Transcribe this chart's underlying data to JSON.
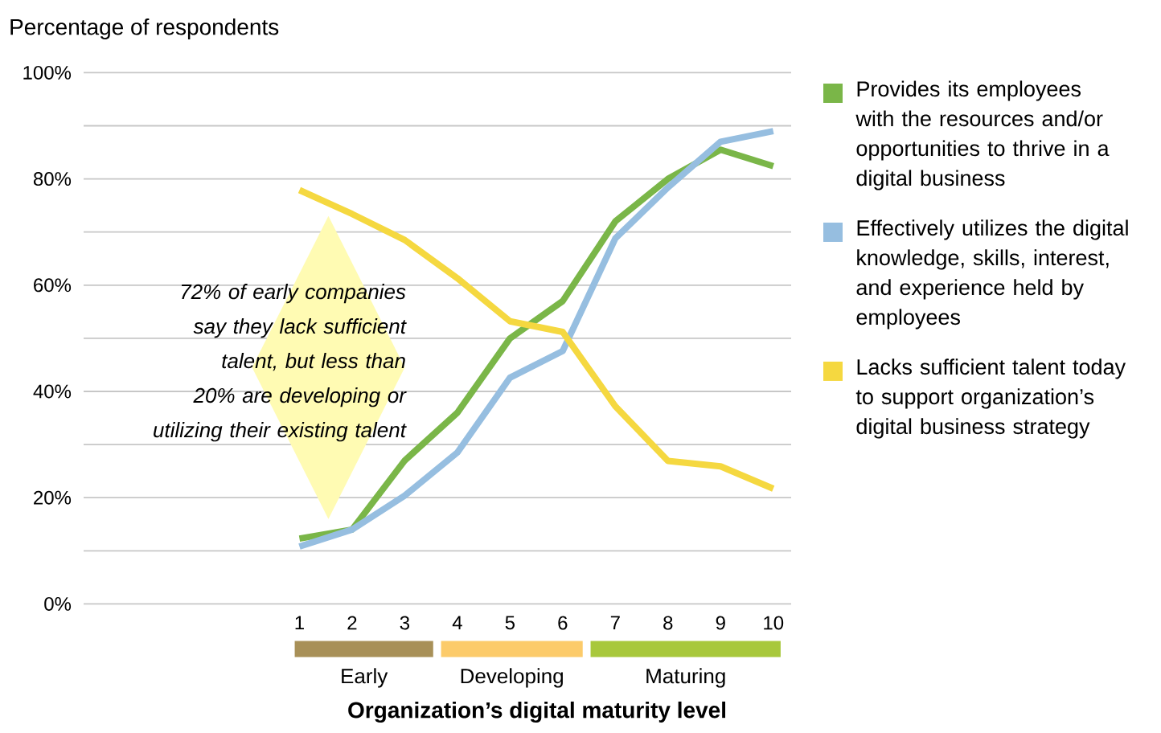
{
  "chart_data": {
    "type": "line",
    "ylabel": "Percentage of respondents",
    "xlabel": "Organization’s digital maturity level",
    "x": [
      1,
      2,
      3,
      4,
      5,
      6,
      7,
      8,
      9,
      10
    ],
    "xlim": [
      -3.1,
      10.34
    ],
    "xticks": [
      1,
      2,
      3,
      4,
      5,
      6,
      7,
      8,
      9,
      10
    ],
    "ylim": [
      0,
      100
    ],
    "yticks": [
      {
        "value": 0,
        "label": "0%"
      },
      {
        "value": 10,
        "label": null
      },
      {
        "value": 20,
        "label": "20%"
      },
      {
        "value": 30,
        "label": null
      },
      {
        "value": 40,
        "label": "40%"
      },
      {
        "value": 50,
        "label": null
      },
      {
        "value": 60,
        "label": "60%"
      },
      {
        "value": 70,
        "label": null
      },
      {
        "value": 80,
        "label": "80%"
      },
      {
        "value": 90,
        "label": null
      },
      {
        "value": 100,
        "label": "100%"
      }
    ],
    "grid": "y",
    "legend": "right",
    "series": [
      {
        "name": "Provides its employees with the resources and/or opportunities to thrive in a digital business",
        "color": "#7ab648",
        "values": [
          12.3,
          14,
          27,
          36,
          50,
          57,
          72,
          80,
          85.5,
          82.4
        ]
      },
      {
        "name": "Effectively utilizes the digital knowledge, skills, interest, and experience held by employees",
        "color": "#96bee0",
        "values": [
          10.8,
          14,
          20.4,
          28.5,
          42.6,
          47.6,
          68.8,
          78.4,
          87,
          89
        ]
      },
      {
        "name": "Lacks sufficient talent today to support organization’s digital business strategy",
        "color": "#f5d840",
        "values": [
          77.9,
          73.4,
          68.5,
          61.3,
          53.2,
          51.2,
          37.2,
          26.9,
          25.9,
          21.7
        ]
      }
    ],
    "annotations": [
      "72% of early companies say they lack sufficient talent, but less than 20% are developing or utilizing their existing talent",
      "Early",
      "Developing",
      "Maturing"
    ]
  }
}
